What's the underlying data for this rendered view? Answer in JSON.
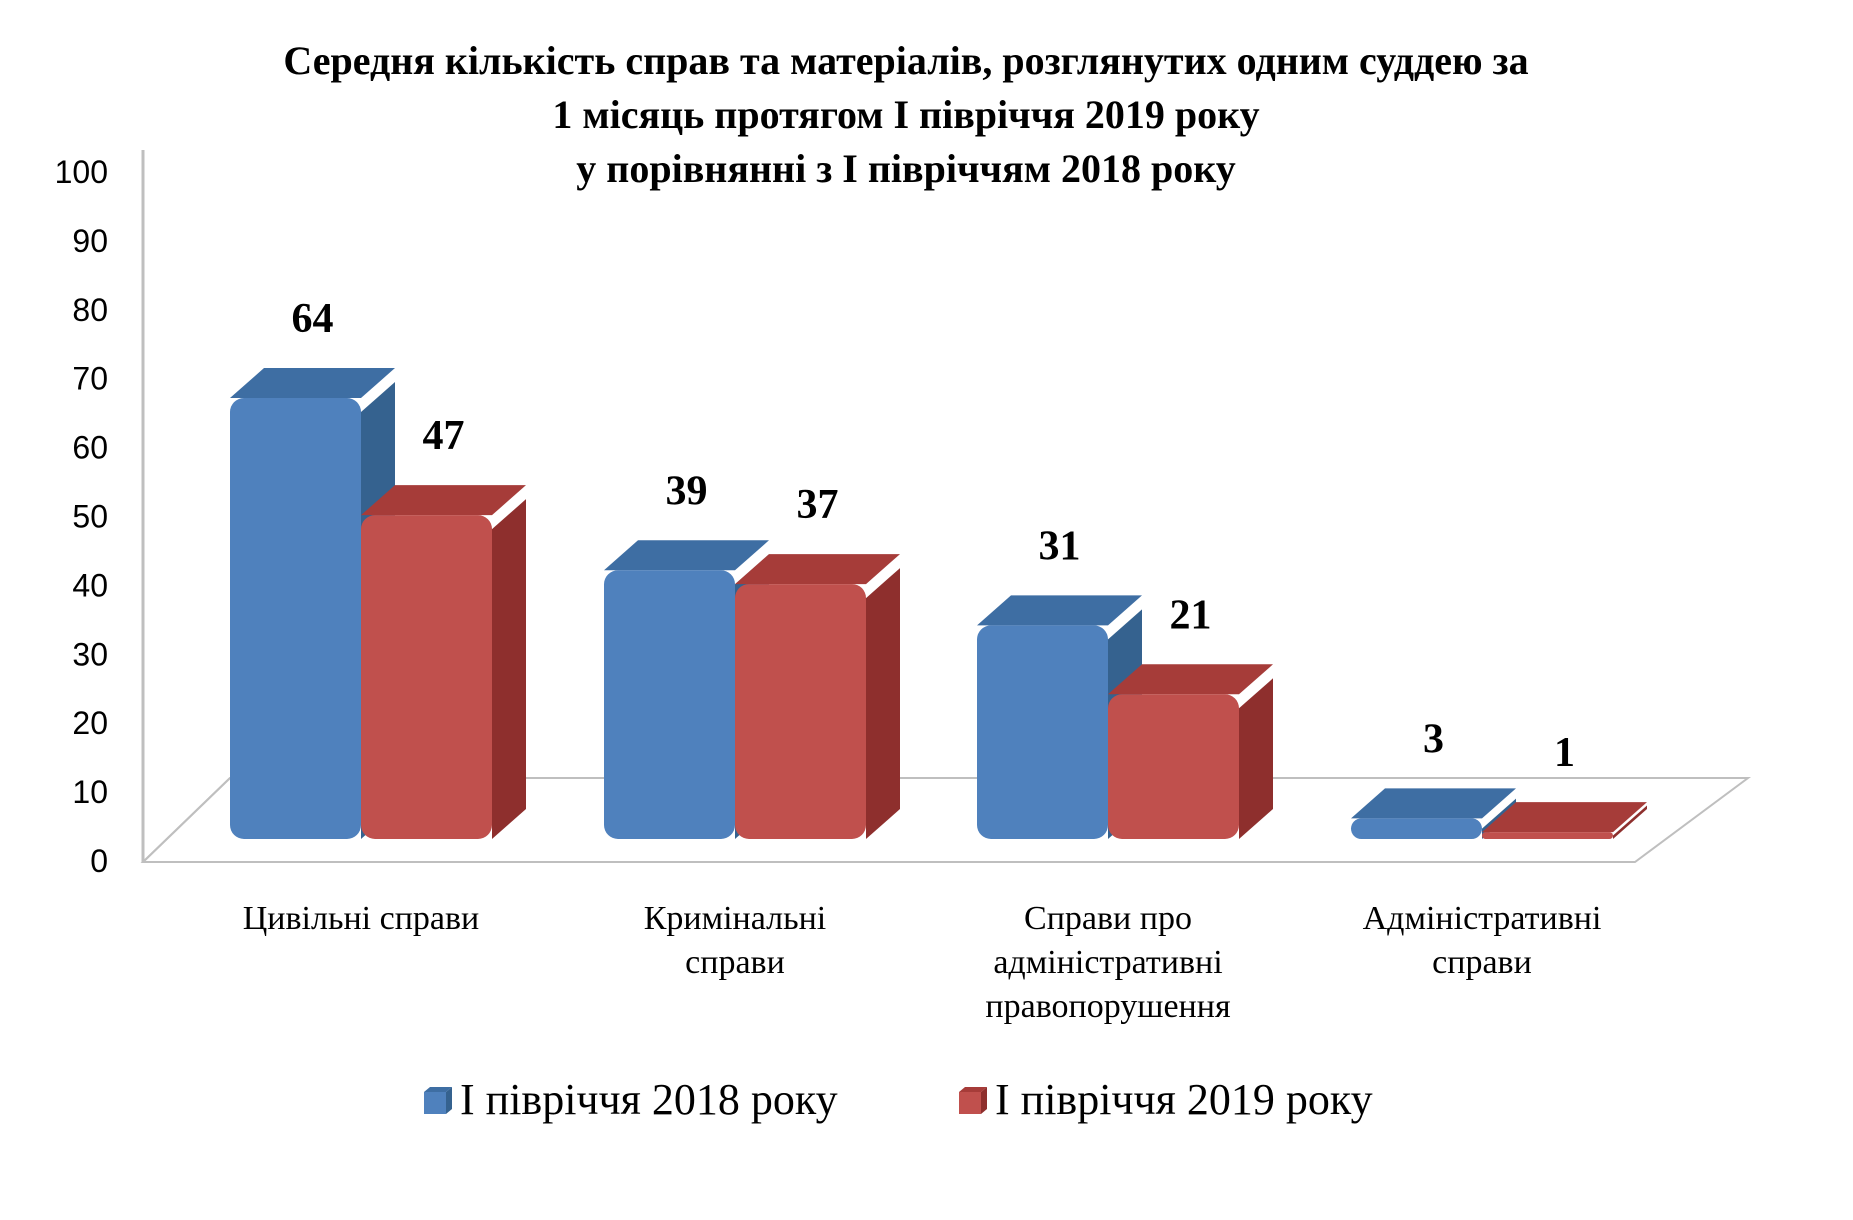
{
  "chart_data": {
    "type": "bar",
    "title_lines": [
      "Середня кількість справ та матеріалів, розглянутих одним  суддею за",
      "1 місяць протягом І півріччя 2019 року",
      "у порівнянні з  І півріччям 2018 року"
    ],
    "categories": [
      [
        "Цивільні справи"
      ],
      [
        "Кримінальні",
        "справи"
      ],
      [
        "Справи про",
        "адміністративні",
        "правопорушення"
      ],
      [
        "Адміністративні",
        "справи"
      ]
    ],
    "series": [
      {
        "name": "І півріччя 2018 року",
        "values": [
          64,
          39,
          31,
          3
        ],
        "color": "#4f81bd",
        "side_color": "#35628f",
        "top_color": "#3e6ea3"
      },
      {
        "name": "І півріччя 2019 року",
        "values": [
          47,
          37,
          21,
          1
        ],
        "color": "#c0504d",
        "side_color": "#8e2f2d",
        "top_color": "#a63c39"
      }
    ],
    "y_ticks": [
      "0",
      "10",
      "20",
      "30",
      "40",
      "50",
      "60",
      "70",
      "80",
      "90",
      "100"
    ],
    "ylim": [
      0,
      100
    ],
    "grid": false,
    "legend_position": "bottom",
    "data_labels": true,
    "style": "3d-column"
  }
}
